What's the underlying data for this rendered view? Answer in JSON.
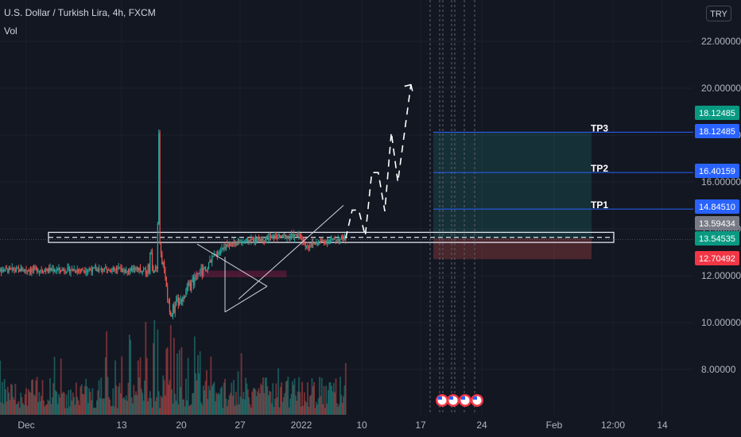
{
  "legend": {
    "title": "U.S. Dollar / Turkish Lira, 4h, FXCM",
    "volume_label": "Vol"
  },
  "currency": "TRY",
  "colors": {
    "background": "#131722",
    "up": "#26a69a",
    "down": "#ef5350",
    "level_line": "#2962ff",
    "target_zone": "#26a69a",
    "stop_zone": "#ef5350",
    "axis_text": "#b2b5be"
  },
  "chart_data": {
    "type": "candlestick",
    "instrument": "USD/TRY",
    "timeframe": "4h",
    "source": "FXCM",
    "y_ticks": [
      22,
      20,
      18,
      16,
      14,
      12,
      10,
      8
    ],
    "y_tick_labels": [
      "22.00000",
      "20.00000",
      "18.00000",
      "16.00000",
      "14.00000",
      "12.00000",
      "10.00000",
      "8.00000"
    ],
    "x_ticks": [
      "Dec",
      "13",
      "20",
      "27",
      "2022",
      "10",
      "17",
      "24",
      "Feb",
      "12:00",
      "14"
    ],
    "price_path": [
      {
        "date": "Nov 26",
        "price": 12.25
      },
      {
        "date": "Dec 1",
        "price": 13.6
      },
      {
        "date": "Dec 6",
        "price": 13.75
      },
      {
        "date": "Dec 10",
        "price": 13.9
      },
      {
        "date": "Dec 13",
        "price": 14.3
      },
      {
        "date": "Dec 16",
        "price": 15.8
      },
      {
        "date": "Dec 18",
        "price": 17.0
      },
      {
        "date": "Dec 20",
        "price": 18.4
      },
      {
        "date": "Dec 20",
        "price": 13.3
      },
      {
        "date": "Dec 22",
        "price": 12.4
      },
      {
        "date": "Dec 23",
        "price": 10.4
      },
      {
        "date": "Dec 25",
        "price": 11.2
      },
      {
        "date": "Dec 28",
        "price": 12.2
      },
      {
        "date": "Dec 31",
        "price": 13.2
      },
      {
        "date": "Jan 3",
        "price": 13.45
      },
      {
        "date": "Jan 8",
        "price": 13.65
      },
      {
        "date": "Jan 12",
        "price": 13.7
      },
      {
        "date": "Jan 13",
        "price": 13.25
      },
      {
        "date": "Jan 15",
        "price": 13.45
      },
      {
        "date": "Jan 19",
        "price": 13.6
      }
    ],
    "price_labels": [
      {
        "value": 18.12485,
        "text": "18.12485",
        "color": "#089981"
      },
      {
        "value": 18.12485,
        "text": "18.12485",
        "color": "#2962ff"
      },
      {
        "value": 16.40159,
        "text": "16.40159",
        "color": "#2962ff"
      },
      {
        "value": 14.8451,
        "text": "14.84510",
        "color": "#2962ff"
      },
      {
        "value": 13.59434,
        "text": "13.59434",
        "color": "#787b86"
      },
      {
        "value": 13.54535,
        "text": "13.54535",
        "color": "#089981"
      },
      {
        "value": 12.70492,
        "text": "12.70492",
        "color": "#f23645"
      }
    ],
    "take_profit_lines": [
      {
        "name": "TP3",
        "value": 18.12485
      },
      {
        "name": "TP2",
        "value": 16.40159
      },
      {
        "name": "TP1",
        "value": 14.8451
      }
    ],
    "position": {
      "entry": 13.59434,
      "target": 18.12485,
      "stop": 12.70492
    },
    "support_band": {
      "low": 13.42,
      "high": 13.85
    },
    "projection_path": [
      {
        "date": "Jan 19",
        "price": 13.6
      },
      {
        "date": "Jan 20",
        "price": 14.8
      },
      {
        "date": "Jan 21",
        "price": 14.8
      },
      {
        "date": "Jan 22",
        "price": 13.7
      },
      {
        "date": "Jan 23",
        "price": 16.4
      },
      {
        "date": "Jan 24",
        "price": 16.4
      },
      {
        "date": "Jan 25",
        "price": 14.75
      },
      {
        "date": "Jan 26",
        "price": 18.12
      },
      {
        "date": "Jan 27",
        "price": 16.0
      },
      {
        "date": "Jan 29",
        "price": 20.15
      }
    ],
    "event_markers": [
      "US",
      "US",
      "US",
      "US"
    ]
  }
}
